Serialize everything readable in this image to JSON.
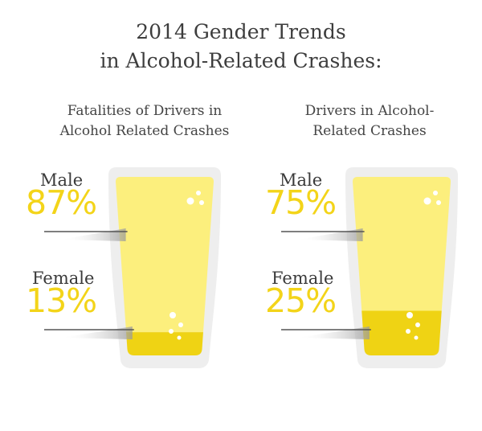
{
  "title_line1": "2014 Gender Trends",
  "title_line2": "in Alcohol-Related Crashes:",
  "chart_data": [
    {
      "type": "bar",
      "title": [
        "Fatalities of Drivers in",
        "Alcohol Related Crashes"
      ],
      "categories": [
        "Male",
        "Female"
      ],
      "values": [
        87,
        13
      ],
      "value_labels": [
        "87%",
        "13%"
      ]
    },
    {
      "type": "bar",
      "title": [
        "Drivers in Alcohol-",
        "Related Crashes"
      ],
      "categories": [
        "Male",
        "Female"
      ],
      "values": [
        75,
        25
      ],
      "value_labels": [
        "75%",
        "25%"
      ]
    }
  ],
  "colors": {
    "beer_light": "#fcef7d",
    "beer_dark": "#efd314",
    "glass": "#eeeeee",
    "accent": "#f3d419"
  }
}
